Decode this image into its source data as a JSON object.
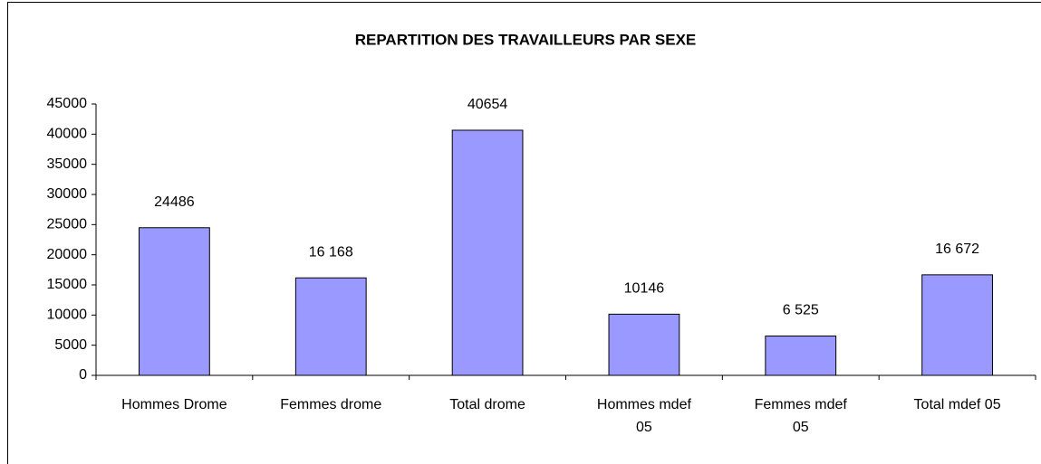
{
  "chart_data": {
    "type": "bar",
    "title": "REPARTITION DES TRAVAILLEURS PAR SEXE",
    "categories": [
      "Hommes Drome",
      "Femmes drome",
      "Total drome",
      "Hommes mdef 05",
      "Femmes mdef 05",
      "Total mdef 05"
    ],
    "values": [
      24486,
      16168,
      40654,
      10146,
      6525,
      16672
    ],
    "value_labels": [
      "24486",
      "16 168",
      "40654",
      "10146",
      "6 525",
      "16 672"
    ],
    "color": "#9999ff",
    "ylim": [
      0,
      45000
    ],
    "yticks": [
      0,
      5000,
      10000,
      15000,
      20000,
      25000,
      30000,
      35000,
      40000,
      45000
    ],
    "grid": false
  }
}
